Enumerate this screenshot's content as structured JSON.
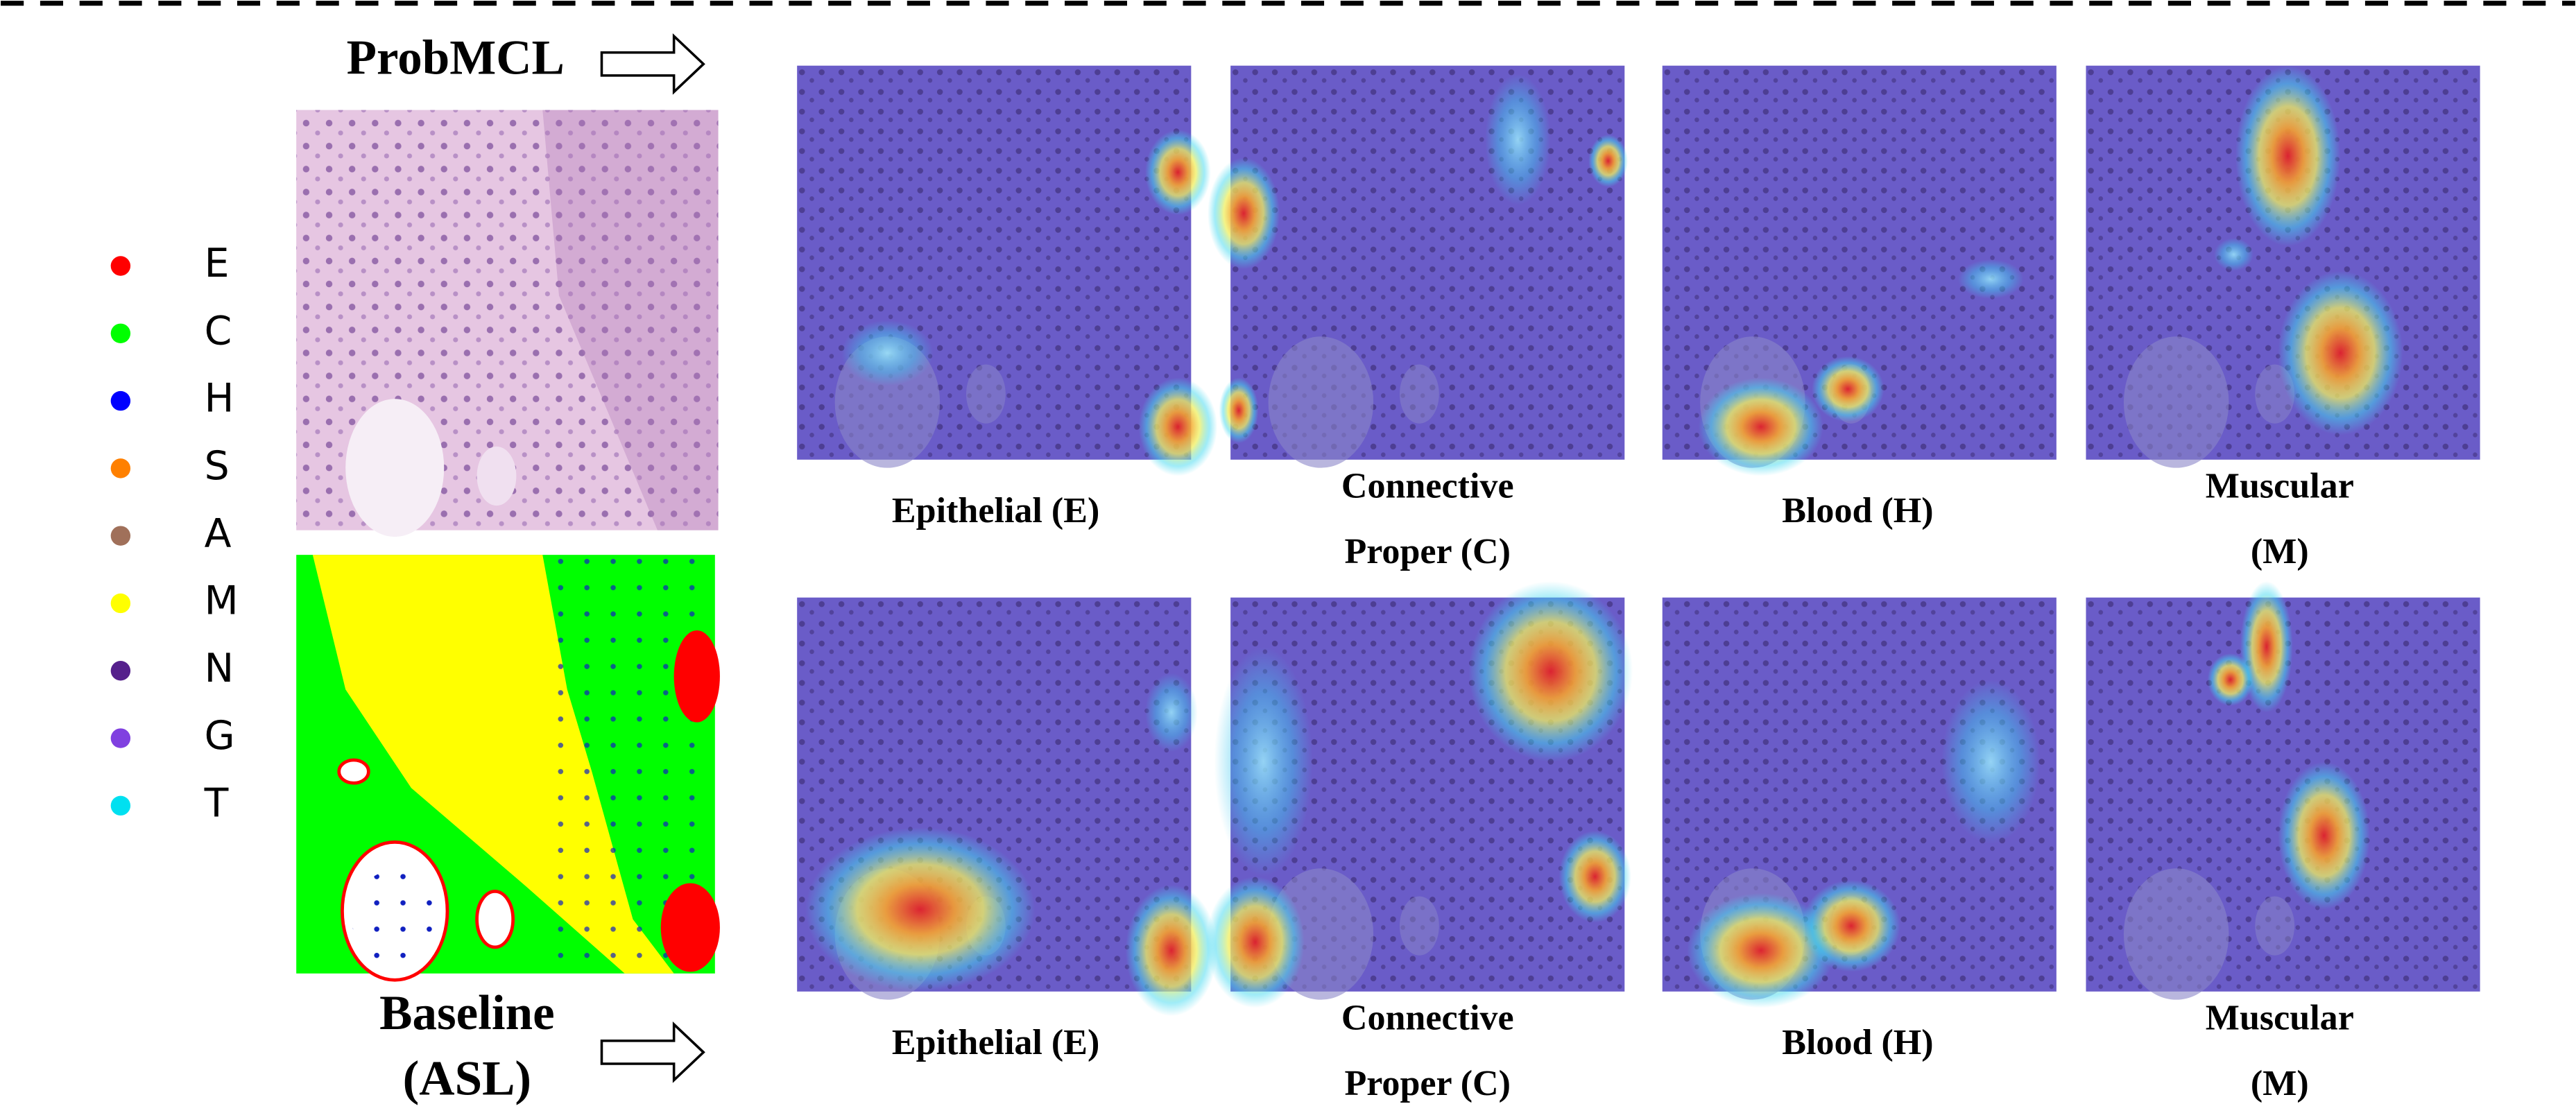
{
  "legend": [
    {
      "label": "E",
      "color": "#ff0000"
    },
    {
      "label": "C",
      "color": "#00ff00"
    },
    {
      "label": "H",
      "color": "#0000ff"
    },
    {
      "label": "S",
      "color": "#ff8000"
    },
    {
      "label": "A",
      "color": "#a0705a"
    },
    {
      "label": "M",
      "color": "#ffff00"
    },
    {
      "label": "N",
      "color": "#55208c"
    },
    {
      "label": "G",
      "color": "#8040e0"
    },
    {
      "label": "T",
      "color": "#00e0f0"
    }
  ],
  "top_label": "ProbMCL",
  "bottom_label": [
    "Baseline",
    "(ASL)"
  ],
  "rows": [
    {
      "captions": [
        [
          "Epithelial (E)"
        ],
        [
          "Connective",
          "Proper (C)"
        ],
        [
          "Blood (H)"
        ],
        [
          "Muscular",
          "(M)"
        ]
      ]
    },
    {
      "captions": [
        [
          "Epithelial (E)"
        ],
        [
          "Connective",
          "Proper (C)"
        ],
        [
          "Blood (H)"
        ],
        [
          "Muscular",
          "(M)"
        ]
      ]
    }
  ]
}
